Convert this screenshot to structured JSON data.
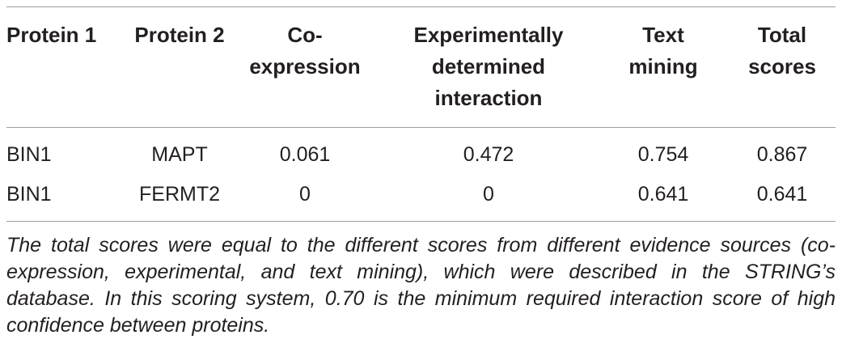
{
  "table": {
    "headers": [
      "Protein 1",
      "Protein 2",
      "Co-\nexpression",
      "Experimentally\ndetermined\ninteraction",
      "Text\nmining",
      "Total\nscores"
    ],
    "rows": [
      [
        "BIN1",
        "MAPT",
        "0.061",
        "0.472",
        "0.754",
        "0.867"
      ],
      [
        "BIN1",
        "FERMT2",
        "0",
        "0",
        "0.641",
        "0.641"
      ]
    ]
  },
  "footnote": "The total scores were equal to the different scores from different evidence sources (co-expression, experimental, and text mining), which were described in the STRING’s database. In this scoring system, 0.70 is the minimum required interaction score of high confidence between proteins."
}
